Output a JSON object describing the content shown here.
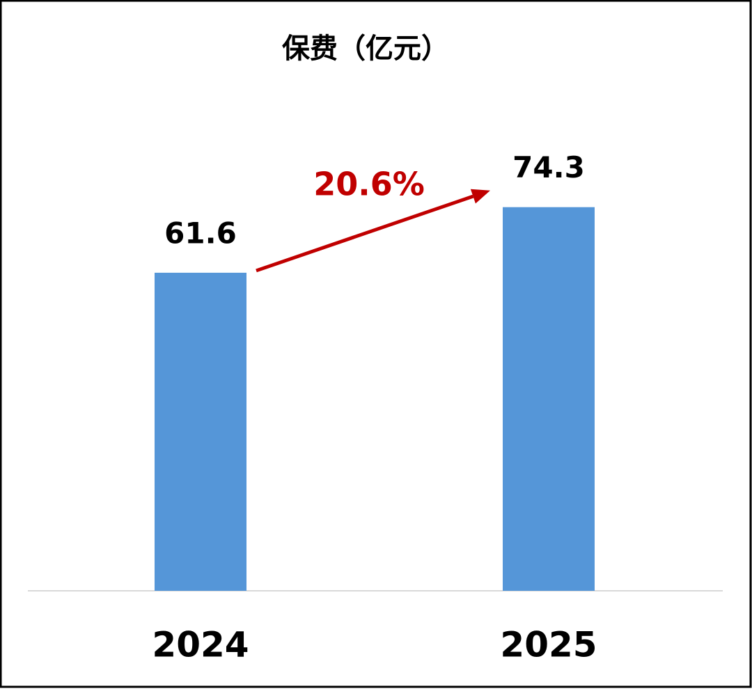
{
  "chart_data": {
    "type": "bar",
    "title": "保费（亿元）",
    "categories": [
      "2024",
      "2025"
    ],
    "values": [
      61.6,
      74.3
    ],
    "color": "#5596d8",
    "annotation": "20.6%",
    "annotation_color": "#c00000"
  }
}
